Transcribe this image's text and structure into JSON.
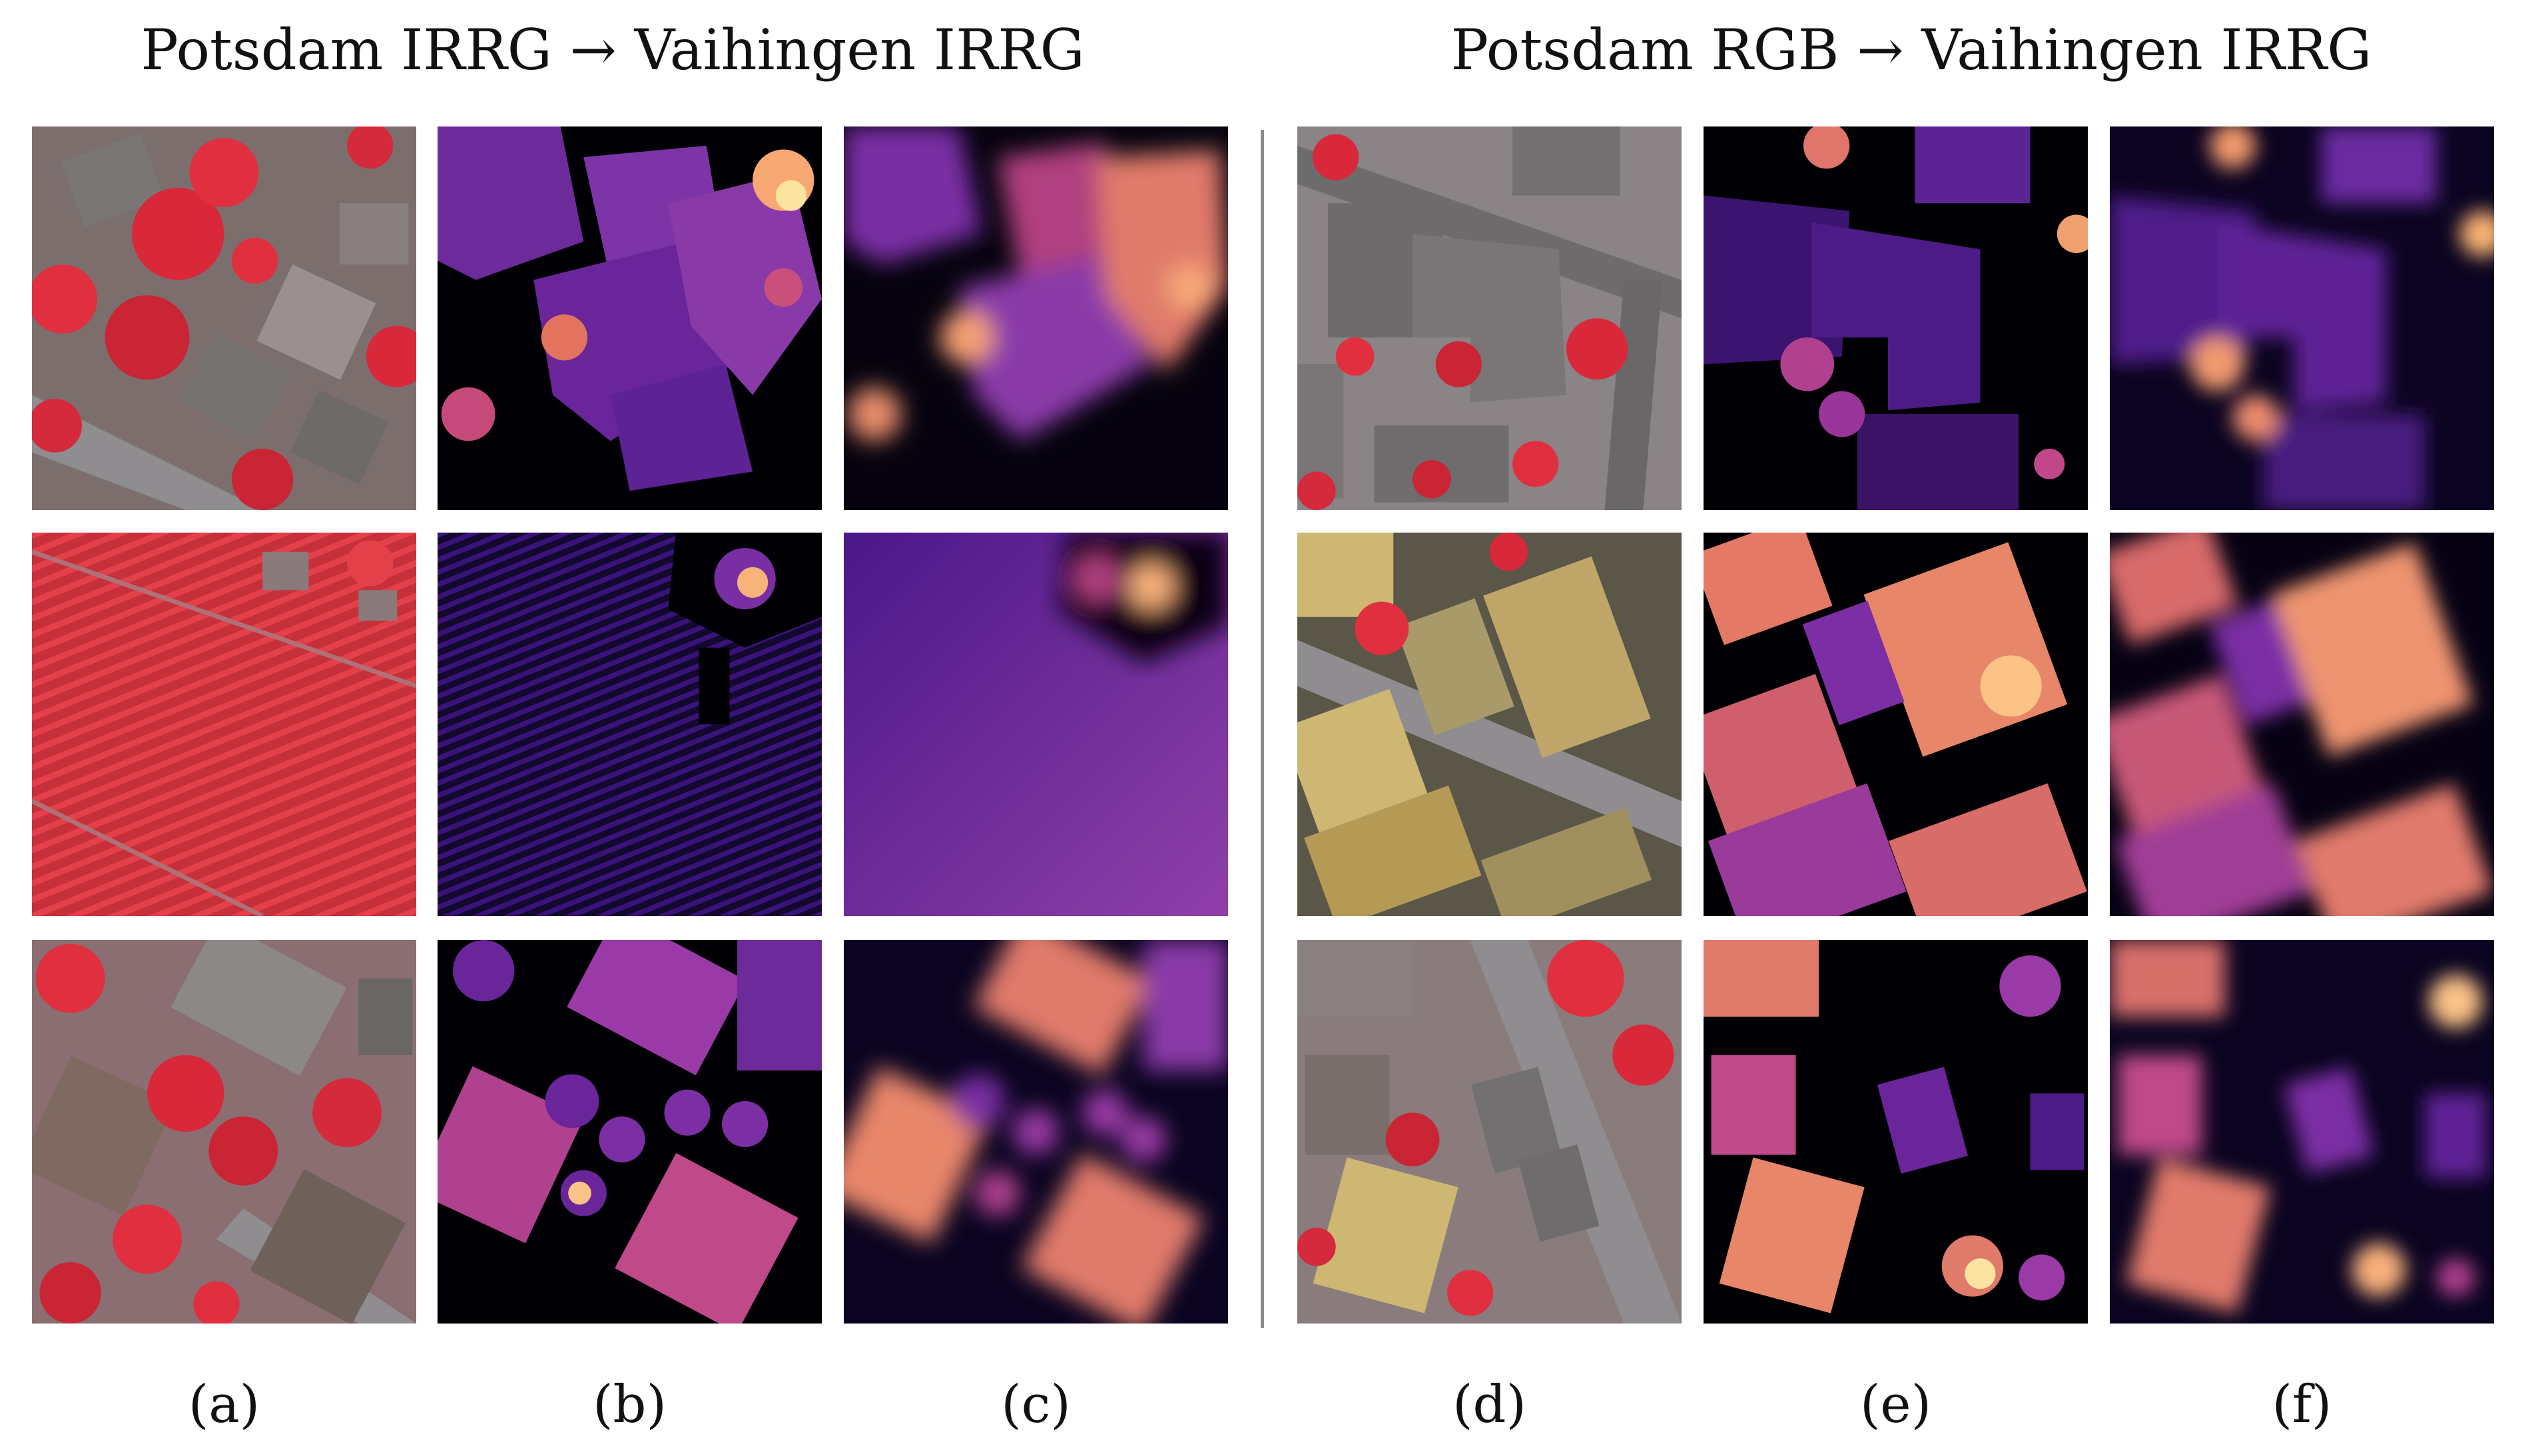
{
  "figure": {
    "group_titles": {
      "left": "Potsdam IRRG → Vaihingen IRRG",
      "right": "Potsdam RGB → Vaihingen IRRG"
    },
    "column_labels": [
      "(a)",
      "(b)",
      "(c)",
      "(d)",
      "(e)",
      "(f)"
    ],
    "colors": {
      "ir_vegetation": "#e0303f",
      "roof_gray": "#7a7676",
      "roof_tan": "#cdb773",
      "road": "#8f8d90",
      "depth_low": "#000004",
      "depth_mid": "#7c2da3",
      "depth_high": "#fdb77a",
      "divider": "#8c8c8c"
    }
  }
}
